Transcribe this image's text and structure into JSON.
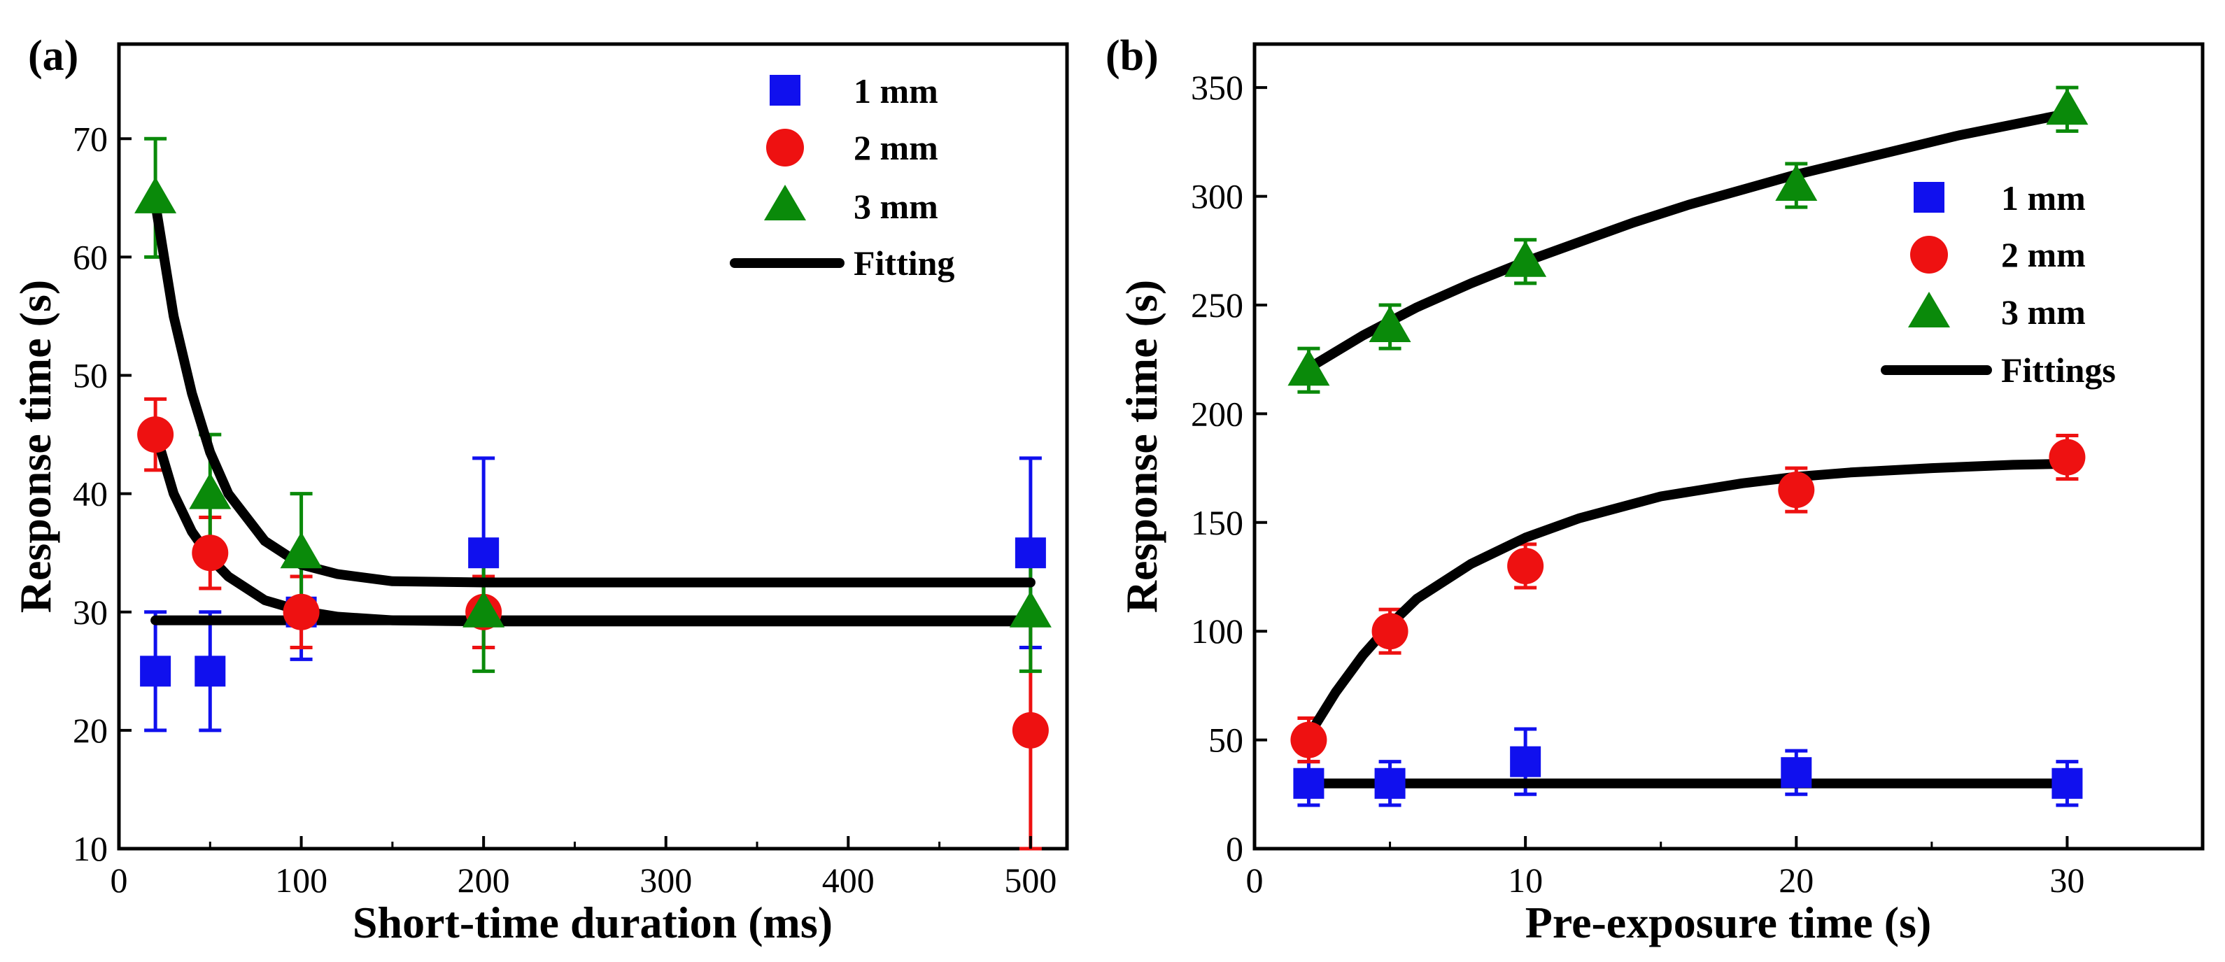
{
  "colors": {
    "1mm": "#1010ee",
    "2mm": "#ee1111",
    "3mm": "#0a8a0a",
    "fit": "#000000",
    "axis": "#000000"
  },
  "chart_data": [
    {
      "type": "scatter",
      "panel_label": "(a)",
      "title": "",
      "xlabel": "Short-time duration  (ms)",
      "ylabel": "Response time (s)",
      "xlim": [
        0,
        520
      ],
      "ylim": [
        10,
        78
      ],
      "xticks": [
        0,
        100,
        200,
        300,
        400,
        500
      ],
      "xtick_labels": [
        "0",
        "100",
        "200",
        "300",
        "400",
        "500"
      ],
      "yticks": [
        10,
        20,
        30,
        40,
        50,
        60,
        70
      ],
      "ytick_labels": [
        "10",
        "20",
        "30",
        "40",
        "50",
        "60",
        "70"
      ],
      "grid": false,
      "legend_position": "top-right",
      "legend": [
        "1 mm",
        "2 mm",
        "3 mm",
        "Fitting"
      ],
      "series": [
        {
          "name": "1 mm",
          "marker": "square",
          "color_key": "1mm",
          "x": [
            20,
            50,
            100,
            200,
            500
          ],
          "y": [
            25,
            25,
            30,
            35,
            35
          ],
          "err": [
            5,
            5,
            4,
            8,
            8
          ]
        },
        {
          "name": "2 mm",
          "marker": "circle",
          "color_key": "2mm",
          "x": [
            20,
            50,
            100,
            200,
            500
          ],
          "y": [
            45,
            35,
            30,
            30,
            20
          ],
          "err": [
            3,
            3,
            3,
            3,
            10
          ]
        },
        {
          "name": "3 mm",
          "marker": "triangle",
          "color_key": "3mm",
          "x": [
            20,
            50,
            100,
            200,
            500
          ],
          "y": [
            65,
            40,
            35,
            30,
            30
          ],
          "err": [
            5,
            5,
            5,
            5,
            5
          ]
        }
      ],
      "fits": [
        {
          "name": "Fitting (1 mm)",
          "x": [
            20,
            40,
            60,
            100,
            200,
            300,
            400,
            500
          ],
          "y": [
            29.3,
            29.3,
            29.3,
            29.3,
            29.3,
            29.3,
            29.3,
            29.3
          ]
        },
        {
          "name": "Fitting (2 mm)",
          "x": [
            20,
            30,
            40,
            50,
            60,
            80,
            100,
            120,
            150,
            200,
            300,
            400,
            500
          ],
          "y": [
            45.2,
            40.0,
            36.8,
            34.6,
            33.0,
            31.0,
            30.1,
            29.6,
            29.3,
            29.2,
            29.2,
            29.2,
            29.2
          ]
        },
        {
          "name": "Fitting (3 mm)",
          "x": [
            20,
            30,
            40,
            50,
            60,
            80,
            100,
            120,
            150,
            200,
            300,
            400,
            500
          ],
          "y": [
            64.5,
            55.0,
            48.5,
            43.5,
            40.0,
            36.0,
            34.0,
            33.2,
            32.6,
            32.5,
            32.5,
            32.5,
            32.5
          ]
        }
      ]
    },
    {
      "type": "scatter",
      "panel_label": "(b)",
      "title": "",
      "xlabel": "Pre-exposure time (s)",
      "ylabel": "Response time (s)",
      "xlim": [
        0,
        35
      ],
      "ylim": [
        0,
        370
      ],
      "xticks": [
        0,
        10,
        20,
        30
      ],
      "xtick_labels": [
        "0",
        "10",
        "20",
        "30"
      ],
      "yticks": [
        0,
        50,
        100,
        150,
        200,
        250,
        300,
        350
      ],
      "ytick_labels": [
        "0",
        "50",
        "100",
        "150",
        "200",
        "250",
        "300",
        "350"
      ],
      "grid": false,
      "legend_position": "right",
      "legend": [
        "1 mm",
        "2 mm",
        "3 mm",
        "Fittings"
      ],
      "series": [
        {
          "name": "1 mm",
          "marker": "square",
          "color_key": "1mm",
          "x": [
            2,
            5,
            10,
            20,
            30
          ],
          "y": [
            30,
            30,
            40,
            35,
            30
          ],
          "err": [
            10,
            10,
            15,
            10,
            10
          ]
        },
        {
          "name": "2 mm",
          "marker": "circle",
          "color_key": "2mm",
          "x": [
            2,
            5,
            10,
            20,
            30
          ],
          "y": [
            50,
            100,
            130,
            165,
            180
          ],
          "err": [
            10,
            10,
            10,
            10,
            10
          ]
        },
        {
          "name": "3 mm",
          "marker": "triangle",
          "color_key": "3mm",
          "x": [
            2,
            5,
            10,
            20,
            30
          ],
          "y": [
            220,
            240,
            270,
            305,
            340
          ],
          "err": [
            10,
            10,
            10,
            10,
            10
          ]
        }
      ],
      "fits": [
        {
          "name": "Fittings (1 mm)",
          "x": [
            2,
            30
          ],
          "y": [
            30,
            30
          ]
        },
        {
          "name": "Fittings (2 mm)",
          "x": [
            2,
            3,
            4,
            5,
            6,
            8,
            10,
            12,
            15,
            18,
            20,
            22,
            25,
            28,
            30
          ],
          "y": [
            52,
            72,
            89,
            103,
            115,
            131,
            143,
            152,
            162,
            168,
            171,
            173,
            175,
            176.5,
            177
          ]
        },
        {
          "name": "Fittings (3 mm)",
          "x": [
            2,
            4,
            6,
            8,
            10,
            12,
            14,
            16,
            18,
            20,
            22,
            24,
            26,
            28,
            30
          ],
          "y": [
            221,
            236,
            249,
            260,
            270,
            279,
            288,
            296,
            303,
            310,
            316,
            322,
            328,
            333,
            338
          ]
        }
      ]
    }
  ]
}
